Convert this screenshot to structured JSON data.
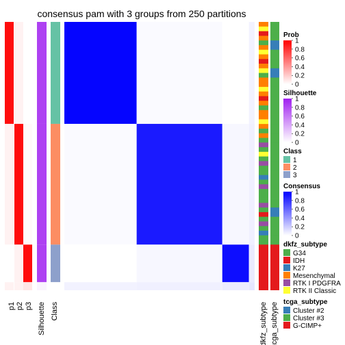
{
  "chart_data": {
    "type": "heatmap",
    "title": "consensus pam with 3 groups from 250 partitions",
    "n_groups": 3,
    "n_partitions": 250,
    "groups": [
      {
        "class": 1,
        "fraction": 0.38
      },
      {
        "class": 2,
        "fraction": 0.45
      },
      {
        "class": 3,
        "fraction": 0.14
      }
    ],
    "prob_bars": [
      {
        "label": "p1"
      },
      {
        "label": "p2"
      },
      {
        "label": "p3"
      }
    ],
    "silhouette_label": "Silhouette",
    "class_label": "Class",
    "dkfz_label": "dkfz_subtype",
    "tcga_label": "tcga_subtype",
    "legends": {
      "prob": {
        "title": "Prob",
        "ticks": [
          "1",
          "0.8",
          "0.6",
          "0.4",
          "0.2",
          "0"
        ],
        "low_color": "#ffffff",
        "high_color": "#ff0000"
      },
      "silhouette": {
        "title": "Silhouette",
        "ticks": [
          "1",
          "0.8",
          "0.6",
          "0.4",
          "0.2",
          "0"
        ],
        "low_color": "#ffffff",
        "high_color": "#a020f0"
      },
      "class": {
        "title": "Class",
        "items": [
          {
            "label": "1",
            "color": "#66c2a5"
          },
          {
            "label": "2",
            "color": "#fc8d62"
          },
          {
            "label": "3",
            "color": "#8da0cb"
          }
        ]
      },
      "consensus": {
        "title": "Consensus",
        "ticks": [
          "1",
          "0.8",
          "0.6",
          "0.4",
          "0.2",
          "0"
        ],
        "low_color": "#ffffff",
        "high_color": "#0000ff"
      },
      "dkfz_subtype": {
        "title": "dkfz_subtype",
        "items": [
          {
            "label": "G34",
            "color": "#4daf4a"
          },
          {
            "label": "IDH",
            "color": "#e41a1c"
          },
          {
            "label": "K27",
            "color": "#377eb8"
          },
          {
            "label": "Mesenchymal",
            "color": "#ff7f00"
          },
          {
            "label": "RTK I PDGFRA",
            "color": "#984ea3"
          },
          {
            "label": "RTK II Classic",
            "color": "#ffff33"
          }
        ]
      },
      "tcga_subtype": {
        "title": "tcga_subtype",
        "items": [
          {
            "label": "Cluster #2",
            "color": "#377eb8"
          },
          {
            "label": "Cluster #3",
            "color": "#4daf4a"
          },
          {
            "label": "G-CIMP+",
            "color": "#e41a1c"
          }
        ]
      }
    }
  }
}
